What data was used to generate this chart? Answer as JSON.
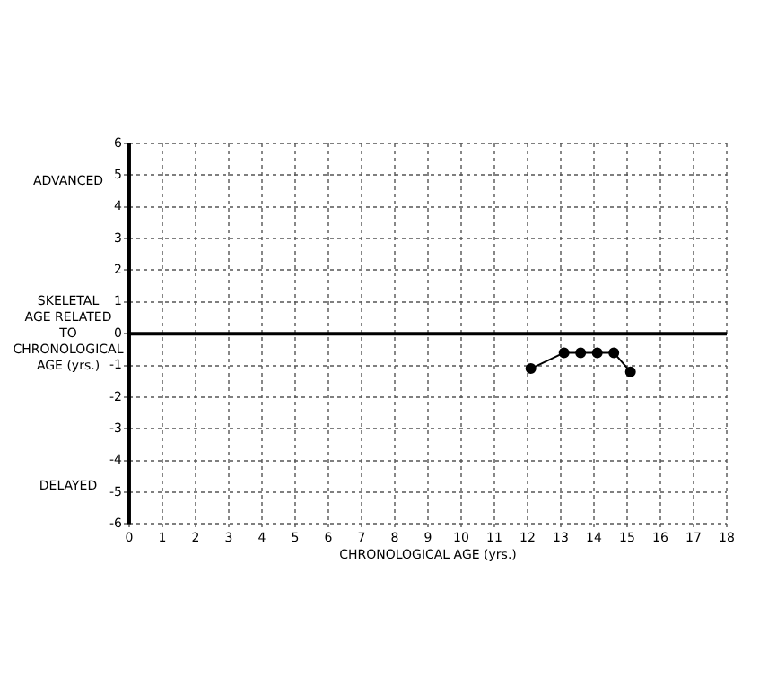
{
  "chart_data": {
    "type": "line",
    "xlabel": "CHRONOLOGICAL AGE (yrs.)",
    "ylabel": "SKELETAL AGE RELATED TO CHRONOLOGICAL AGE (yrs.)",
    "annotations": [
      "ADVANCED",
      "DELAYED"
    ],
    "series": [
      {
        "color": "#000000",
        "x": [
          12.1,
          13.1,
          13.6,
          14.1,
          14.6,
          15.1
        ],
        "values": [
          -1.1,
          -0.6,
          -0.6,
          -0.6,
          -0.6,
          -1.2
        ]
      }
    ],
    "xlim": [
      0,
      18
    ],
    "xticks": [
      0,
      1,
      2,
      3,
      4,
      5,
      6,
      7,
      8,
      9,
      10,
      11,
      12,
      13,
      14,
      15,
      16,
      17,
      18
    ],
    "ylim": [
      -6,
      6
    ],
    "yticks": [
      -6,
      -5,
      -4,
      -3,
      -2,
      -1,
      0,
      1,
      2,
      3,
      4,
      5,
      6
    ],
    "ref_lines": [
      {
        "axis": "y",
        "value": 0,
        "color": "#000000"
      }
    ],
    "grid": true,
    "legend": false,
    "marker": "circle",
    "line_style": "solid"
  }
}
